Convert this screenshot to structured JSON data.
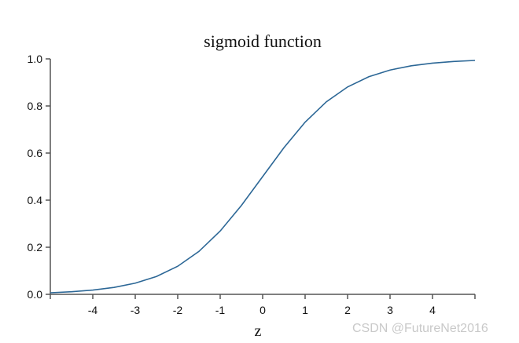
{
  "chart_data": {
    "type": "line",
    "title": "sigmoid function",
    "xlabel": "z",
    "ylabel": "",
    "xlim": [
      -5,
      5
    ],
    "ylim": [
      0,
      1
    ],
    "grid": false,
    "x_ticks": [
      -4,
      -3,
      -2,
      -1,
      0,
      1,
      2,
      3,
      4
    ],
    "x_tick_labels": [
      "-4",
      "-3",
      "-2",
      "-1",
      "0",
      "1",
      "2",
      "3",
      "4"
    ],
    "y_ticks": [
      0,
      0.2,
      0.4,
      0.6,
      0.8,
      1
    ],
    "y_tick_labels": [
      "0.0",
      "0.2",
      "0.4",
      "0.6",
      "0.8",
      "1.0"
    ],
    "series": [
      {
        "color": "#2c6796",
        "x": [
          -5,
          -4.5,
          -4,
          -3.5,
          -3,
          -2.5,
          -2,
          -1.5,
          -1,
          -0.5,
          0,
          0.5,
          1,
          1.5,
          2,
          2.5,
          3,
          3.5,
          4,
          4.5,
          5
        ],
        "y": [
          0.0067,
          0.011,
          0.018,
          0.0293,
          0.0474,
          0.0759,
          0.1192,
          0.1824,
          0.2689,
          0.3775,
          0.5,
          0.6225,
          0.7311,
          0.8176,
          0.8808,
          0.9241,
          0.9526,
          0.9707,
          0.982,
          0.989,
          0.9933
        ]
      }
    ]
  },
  "watermark": "CSDN @FutureNet2016"
}
